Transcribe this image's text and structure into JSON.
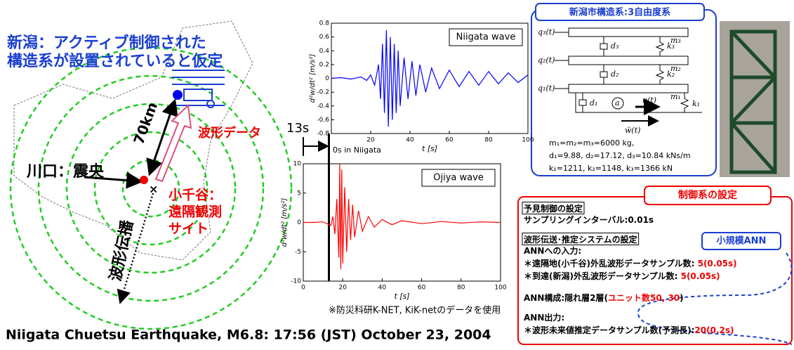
{
  "map": {
    "title": [
      "新潟：アクティブ制御された",
      "構造系が設置されていると仮定"
    ],
    "distance": "70km",
    "waveform_data": "波形データ",
    "epicenter": "川口：震央",
    "site": [
      "小千谷：",
      "遠隔観測",
      "サイト"
    ],
    "propagation": "波形伝播"
  },
  "chart_data": [
    {
      "type": "line",
      "xlabel": "t [s]",
      "ylabel": "d²w/dt² [m/s²]",
      "xlim": [
        0,
        100
      ],
      "xticks": [
        20,
        40,
        60,
        80,
        100
      ],
      "ylim": [
        -0.8,
        0.8
      ],
      "yticks": [
        -0.8,
        -0.6,
        -0.4,
        -0.2,
        0,
        0.2,
        0.4,
        0.6,
        0.8
      ],
      "series": [
        {
          "name": "Niigata wave",
          "color": "#0000ff",
          "x": [
            0,
            5,
            10,
            15,
            18,
            20,
            22,
            24,
            25,
            26,
            27,
            28,
            29,
            30,
            31,
            32,
            33,
            34,
            35,
            37,
            39,
            41,
            43,
            45,
            48,
            51,
            55,
            60,
            65,
            70,
            75,
            80,
            85,
            90,
            95,
            100
          ],
          "values": [
            0,
            0.01,
            -0.01,
            0.02,
            -0.03,
            0.05,
            -0.1,
            0.2,
            -0.3,
            0.5,
            -0.5,
            0.7,
            -0.7,
            0.6,
            -0.6,
            0.5,
            -0.5,
            0.4,
            -0.4,
            0.3,
            -0.3,
            0.25,
            -0.25,
            0.2,
            -0.2,
            0.15,
            -0.15,
            0.12,
            -0.12,
            0.1,
            -0.1,
            0.1,
            -0.08,
            0.08,
            -0.06,
            0.05
          ]
        }
      ]
    },
    {
      "type": "line",
      "xlabel": "t [s]",
      "ylabel": "d²w/dt² [m/s²]",
      "xlim": [
        0,
        100
      ],
      "xticks": [
        0,
        20,
        40,
        60,
        80,
        100
      ],
      "ylim": [
        -10,
        10
      ],
      "yticks": [
        -10,
        -5,
        0,
        5,
        10
      ],
      "series": [
        {
          "name": "Ojiya wave",
          "color": "#ff0000",
          "x": [
            0,
            5,
            10,
            14,
            15,
            16,
            17,
            18,
            18.5,
            19,
            19.5,
            20,
            21,
            22,
            23,
            24,
            25,
            26,
            28,
            30,
            33,
            36,
            40,
            45,
            50,
            60,
            70,
            80,
            90,
            100
          ],
          "values": [
            0,
            0,
            0.1,
            -0.5,
            1,
            -2,
            4,
            -6,
            10,
            -8,
            9,
            -7,
            6,
            -5,
            4,
            -3,
            3,
            -2.5,
            2,
            -1.5,
            1,
            -0.8,
            0.5,
            -0.4,
            0.3,
            -0.2,
            0.15,
            -0.1,
            0.1,
            0
          ]
        }
      ]
    }
  ],
  "annotations": {
    "offset": "13s",
    "zero": "0s in Niigata",
    "source": "※防災科研K-NET, KiK-netのデータを使用"
  },
  "structure": {
    "title": "新潟市構造系:3自由度系",
    "labels": [
      "q₃(t)",
      "m₃",
      "d₃",
      "k₃",
      "q₂(t)",
      "m₂",
      "d₂",
      "k₂",
      "q₁(t)",
      "m₁",
      "d₁",
      "a",
      "u(t)",
      "k₁",
      "ẅ(t)"
    ],
    "params": [
      "m₁=m₂=m₃=6000 kg,",
      "d₁=9.88, d₂=17.12, d₃=10.84 kNs/m",
      "k₁=1211, k₂=1148, k₃=1366 kN"
    ]
  },
  "control": {
    "title": "制御系の設定",
    "badge": "小規模ANN",
    "lines": [
      [
        "予見制御の設定"
      ],
      [
        "サンプリングインターバル:0.01s"
      ],
      [
        "波形伝送･推定システムの設定"
      ],
      [
        "ANNへの入力:"
      ],
      [
        "＊遠隔地(小千谷)外乱波形データサンプル数: ",
        "5(0.05s)"
      ],
      [
        "＊到達(新潟)外乱波形データサンプル数: ",
        "5(0.05s)"
      ],
      [
        "ANN構成:隠れ層2層(",
        "ユニット数50, 30",
        ")"
      ],
      [
        "ANN出力:"
      ],
      [
        "＊波形未来値推定データサンプル数(予測長):",
        "20(0.2s)"
      ]
    ]
  },
  "footer": "Niigata Chuetsu Earthquake, M6.8: 17:56 (JST) October 23, 2004"
}
